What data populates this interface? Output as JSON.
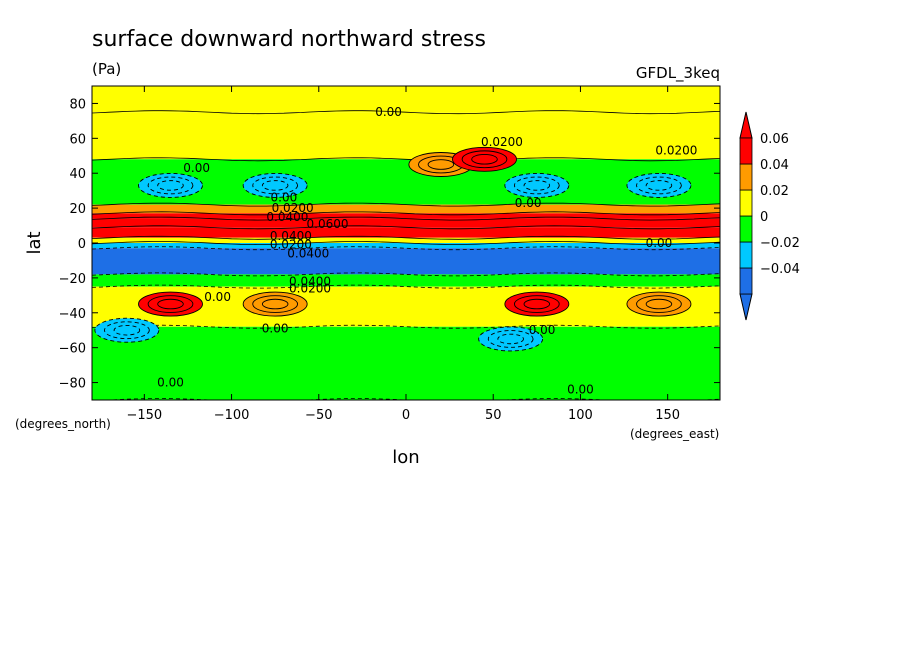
{
  "chart_data": {
    "type": "heatmap",
    "title": "surface downward northward stress",
    "units": "(Pa)",
    "model": "GFDL_3keq",
    "xlabel": "lon",
    "ylabel": "lat",
    "x_units": "(degrees_east)",
    "y_units": "(degrees_north)",
    "xlim": [
      -180,
      180
    ],
    "ylim": [
      -90,
      90
    ],
    "x_ticks": [
      -150,
      -100,
      -50,
      0,
      50,
      100,
      150
    ],
    "y_ticks": [
      -80,
      -60,
      -40,
      -20,
      0,
      20,
      40,
      60,
      80
    ],
    "x_tick_labels": [
      "−150",
      "−100",
      "−50",
      "0",
      "50",
      "100",
      "150"
    ],
    "y_tick_labels": [
      "−80",
      "−60",
      "−40",
      "−20",
      "0",
      "20",
      "40",
      "60",
      "80"
    ],
    "legend": {
      "placement": "right",
      "levels": [
        -0.04,
        -0.02,
        0,
        0.02,
        0.04,
        0.06
      ],
      "labels": [
        "−0.04",
        "−0.02",
        "0",
        "0.02",
        "0.04",
        "0.06"
      ],
      "colors": [
        "#1e6fe6",
        "#00c8ff",
        "#00ff00",
        "#ffff00",
        "#ff9b00",
        "#ff0000"
      ]
    },
    "bands": [
      {
        "lat_min": 75,
        "lat_max": 90,
        "value": 0.01
      },
      {
        "lat_min": 48,
        "lat_max": 75,
        "value": 0.01
      },
      {
        "lat_min": 22,
        "lat_max": 48,
        "value": -0.01
      },
      {
        "lat_min": 17,
        "lat_max": 22,
        "value": 0.03
      },
      {
        "lat_min": 14,
        "lat_max": 17,
        "value": 0.05
      },
      {
        "lat_min": 9,
        "lat_max": 14,
        "value": 0.07
      },
      {
        "lat_min": 3,
        "lat_max": 9,
        "value": 0.05
      },
      {
        "lat_min": 0,
        "lat_max": 3,
        "value": 0.01
      },
      {
        "lat_min": -3,
        "lat_max": 0,
        "value": -0.03
      },
      {
        "lat_min": -18,
        "lat_max": -3,
        "value": -0.05
      },
      {
        "lat_min": -25,
        "lat_max": -18,
        "value": -0.01
      },
      {
        "lat_min": -48,
        "lat_max": -25,
        "value": 0.01
      },
      {
        "lat_min": -90,
        "lat_max": -48,
        "value": -0.01
      }
    ],
    "features": [
      {
        "kind": "low",
        "lon": -135,
        "lat": 33,
        "value": -0.03
      },
      {
        "kind": "low",
        "lon": -75,
        "lat": 33,
        "value": -0.03
      },
      {
        "kind": "low",
        "lon": 75,
        "lat": 33,
        "value": -0.03
      },
      {
        "kind": "low",
        "lon": 145,
        "lat": 33,
        "value": -0.03
      },
      {
        "kind": "high",
        "lon": 20,
        "lat": 45,
        "value": 0.03
      },
      {
        "kind": "high",
        "lon": 45,
        "lat": 48,
        "value": 0.05
      },
      {
        "kind": "high",
        "lon": -135,
        "lat": -35,
        "value": 0.05
      },
      {
        "kind": "high",
        "lon": -75,
        "lat": -35,
        "value": 0.03
      },
      {
        "kind": "high",
        "lon": 75,
        "lat": -35,
        "value": 0.05
      },
      {
        "kind": "high",
        "lon": 145,
        "lat": -35,
        "value": 0.03
      },
      {
        "kind": "low",
        "lon": -160,
        "lat": -50,
        "value": -0.03
      },
      {
        "kind": "low",
        "lon": 60,
        "lat": -55,
        "value": -0.03
      }
    ],
    "contour_labels": [
      {
        "text": "0.00",
        "lon": -10,
        "lat": 75
      },
      {
        "text": "0.0200",
        "lon": 55,
        "lat": 58
      },
      {
        "text": "0.0200",
        "lon": 155,
        "lat": 53
      },
      {
        "text": "0.00",
        "lon": -120,
        "lat": 43
      },
      {
        "text": "0.00",
        "lon": 70,
        "lat": 23
      },
      {
        "text": "0.00",
        "lon": -70,
        "lat": 26
      },
      {
        "text": "0.0200",
        "lon": -65,
        "lat": 20
      },
      {
        "text": "0.0400",
        "lon": -68,
        "lat": 15
      },
      {
        "text": "0.0600",
        "lon": -45,
        "lat": 11
      },
      {
        "text": "0.0400",
        "lon": -66,
        "lat": 4
      },
      {
        "text": "0.0200",
        "lon": -66,
        "lat": -1
      },
      {
        "text": "0.0400",
        "lon": -56,
        "lat": -6
      },
      {
        "text": "0.00",
        "lon": 145,
        "lat": 0
      },
      {
        "text": "0.0400",
        "lon": -55,
        "lat": -22
      },
      {
        "text": "0.0200",
        "lon": -55,
        "lat": -26
      },
      {
        "text": "0.00",
        "lon": -108,
        "lat": -31
      },
      {
        "text": "0.00",
        "lon": -75,
        "lat": -49
      },
      {
        "text": "0.00",
        "lon": 78,
        "lat": -50
      },
      {
        "text": "0.00",
        "lon": -135,
        "lat": -80
      },
      {
        "text": "0.00",
        "lon": 100,
        "lat": -84
      }
    ]
  }
}
